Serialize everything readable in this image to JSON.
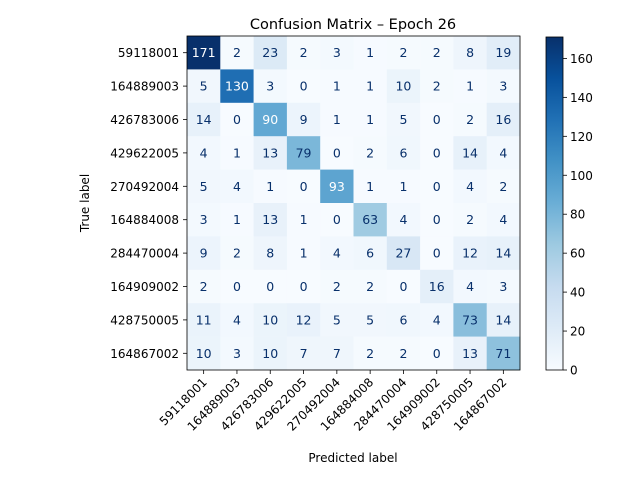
{
  "chart_data": {
    "type": "heatmap",
    "title": "Confusion Matrix – Epoch 26",
    "xlabel": "Predicted label",
    "ylabel": "True label",
    "labels": [
      "59118001",
      "164889003",
      "426783006",
      "429622005",
      "270492004",
      "164884008",
      "284470004",
      "164909002",
      "428750005",
      "164867002"
    ],
    "matrix": [
      [
        171,
        2,
        23,
        2,
        3,
        1,
        2,
        2,
        8,
        19
      ],
      [
        5,
        130,
        3,
        0,
        1,
        1,
        10,
        2,
        1,
        3
      ],
      [
        14,
        0,
        90,
        9,
        1,
        1,
        5,
        0,
        2,
        16
      ],
      [
        4,
        1,
        13,
        79,
        0,
        2,
        6,
        0,
        14,
        4
      ],
      [
        5,
        4,
        1,
        0,
        93,
        1,
        1,
        0,
        4,
        2
      ],
      [
        3,
        1,
        13,
        1,
        0,
        63,
        4,
        0,
        2,
        4
      ],
      [
        9,
        2,
        8,
        1,
        4,
        6,
        27,
        0,
        12,
        14
      ],
      [
        2,
        0,
        0,
        0,
        2,
        2,
        0,
        16,
        4,
        3
      ],
      [
        11,
        4,
        10,
        12,
        5,
        5,
        6,
        4,
        73,
        14
      ],
      [
        10,
        3,
        10,
        7,
        7,
        2,
        2,
        0,
        13,
        71
      ]
    ],
    "colorbar": {
      "min": 0,
      "max": 171,
      "ticks": [
        0,
        20,
        40,
        60,
        80,
        100,
        120,
        140,
        160
      ]
    },
    "colormap": "Blues",
    "colors": {
      "low": "#f7fbff",
      "high": "#08306b",
      "text_dark": "#08306b",
      "text_light": "#ffffff"
    }
  }
}
